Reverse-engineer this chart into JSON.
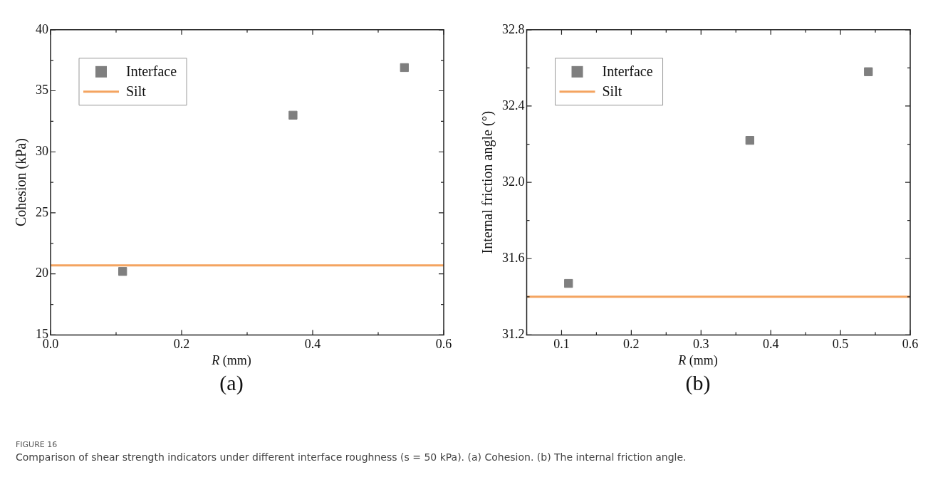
{
  "chart_data": [
    {
      "type": "scatter",
      "xlabel": "R (mm)",
      "ylabel": "Cohesion (kPa)",
      "xlim": [
        0,
        0.6
      ],
      "xticks": [
        {
          "value": 0,
          "label": "0.0"
        },
        {
          "value": 0.1,
          "label": null
        },
        {
          "value": 0.2,
          "label": "0.2"
        },
        {
          "value": 0.3,
          "label": null
        },
        {
          "value": 0.4,
          "label": "0.4"
        },
        {
          "value": 0.5,
          "label": null
        },
        {
          "value": 0.6,
          "label": "0.6"
        }
      ],
      "ylim": [
        15,
        40
      ],
      "yticks": [
        15,
        {
          "value": 17.5,
          "label": null
        },
        20,
        {
          "value": 22.5,
          "label": null
        },
        25,
        {
          "value": 27.5,
          "label": null
        },
        30,
        {
          "value": 32.5,
          "label": null
        },
        35,
        {
          "value": 37.5,
          "label": null
        },
        40
      ],
      "legend": "top left",
      "annotations": [
        "(a)"
      ],
      "series": [
        {
          "name": "Interface",
          "color": "#7f7f7f",
          "marker": "square",
          "x": [
            0.11,
            0.37,
            0.54
          ],
          "values": [
            20.2,
            33.0,
            36.9
          ]
        },
        {
          "name": "Silt",
          "type": "line",
          "color": "#f4a460",
          "x": [
            0,
            0.6
          ],
          "values": [
            20.7,
            20.7
          ]
        }
      ]
    },
    {
      "type": "scatter",
      "xlabel": "R (mm)",
      "ylabel": "Internal friction angle (°)",
      "xlim": [
        0.05,
        0.6
      ],
      "xticks": [
        {
          "value": 0.05,
          "label": null
        },
        0.1,
        {
          "value": 0.15,
          "label": null
        },
        0.2,
        {
          "value": 0.25,
          "label": null
        },
        0.3,
        {
          "value": 0.35,
          "label": null
        },
        0.4,
        {
          "value": 0.45,
          "label": null
        },
        0.5,
        {
          "value": 0.55,
          "label": null
        },
        0.6
      ],
      "ylim": [
        31.2,
        32.8
      ],
      "yticks": [
        31.2,
        {
          "value": 31.4,
          "label": null
        },
        31.6,
        {
          "value": 31.8,
          "label": null
        },
        {
          "value": 32.0,
          "label": "32.0"
        },
        {
          "value": 32.2,
          "label": null
        },
        32.4,
        {
          "value": 32.6,
          "label": null
        },
        32.8
      ],
      "legend": "top left",
      "annotations": [
        "(b)",
        "FIGURE 16",
        "Comparison of shear strength indicators under different interface roughness (s = 50 kPa). (a) Cohesion. (b) The internal friction angle."
      ],
      "series": [
        {
          "name": "Interface",
          "color": "#7f7f7f",
          "marker": "square",
          "x": [
            0.11,
            0.37,
            0.54
          ],
          "values": [
            31.47,
            32.22,
            32.58
          ]
        },
        {
          "name": "Silt",
          "type": "line",
          "color": "#f4a460",
          "x": [
            0.05,
            0.6
          ],
          "values": [
            31.4,
            31.4
          ]
        }
      ]
    }
  ]
}
